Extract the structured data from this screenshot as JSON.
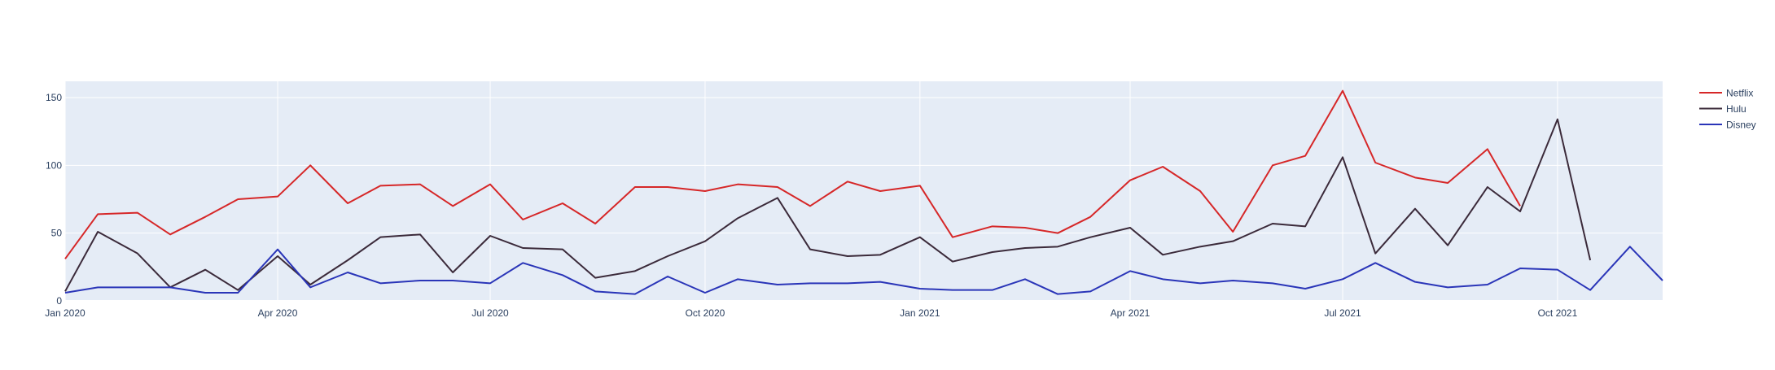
{
  "chart_data": {
    "type": "line",
    "title": "",
    "xlabel": "",
    "ylabel": "",
    "x": [
      "2020-01-01",
      "2020-01-15",
      "2020-02-01",
      "2020-02-15",
      "2020-03-01",
      "2020-03-15",
      "2020-04-01",
      "2020-04-15",
      "2020-05-01",
      "2020-05-15",
      "2020-06-01",
      "2020-06-15",
      "2020-07-01",
      "2020-07-15",
      "2020-08-01",
      "2020-08-15",
      "2020-09-01",
      "2020-09-15",
      "2020-10-01",
      "2020-10-15",
      "2020-11-01",
      "2020-11-15",
      "2020-12-01",
      "2020-12-15",
      "2021-01-01",
      "2021-01-15",
      "2021-02-01",
      "2021-02-15",
      "2021-03-01",
      "2021-03-15",
      "2021-04-01",
      "2021-04-15",
      "2021-05-01",
      "2021-05-15",
      "2021-06-01",
      "2021-06-15",
      "2021-07-01",
      "2021-07-15",
      "2021-08-01",
      "2021-08-15",
      "2021-09-01",
      "2021-09-15",
      "2021-10-01",
      "2021-10-15",
      "2021-11-01",
      "2021-11-15"
    ],
    "xlim": [
      "2020-01-01",
      "2021-11-15"
    ],
    "ylim": [
      0,
      162
    ],
    "x_ticks": [
      {
        "date": "2020-01-01",
        "label": "Jan 2020"
      },
      {
        "date": "2020-04-01",
        "label": "Apr 2020"
      },
      {
        "date": "2020-07-01",
        "label": "Jul 2020"
      },
      {
        "date": "2020-10-01",
        "label": "Oct 2020"
      },
      {
        "date": "2021-01-01",
        "label": "Jan 2021"
      },
      {
        "date": "2021-04-01",
        "label": "Apr 2021"
      },
      {
        "date": "2021-07-01",
        "label": "Jul 2021"
      },
      {
        "date": "2021-10-01",
        "label": "Oct 2021"
      }
    ],
    "y_ticks": [
      0,
      50,
      100,
      150
    ],
    "grid": true,
    "legend_position": "top-right",
    "series": [
      {
        "name": "Netflix",
        "color": "#d62728",
        "values": [
          31,
          64,
          65,
          49,
          62,
          75,
          77,
          100,
          72,
          85,
          86,
          70,
          86,
          60,
          72,
          57,
          84,
          84,
          81,
          86,
          84,
          70,
          88,
          81,
          85,
          47,
          55,
          54,
          50,
          62,
          89,
          99,
          81,
          51,
          100,
          107,
          155,
          102,
          91,
          87,
          112,
          70,
          null,
          null,
          null,
          null
        ]
      },
      {
        "name": "Hulu",
        "color": "#3b2a3a",
        "values": [
          7,
          51,
          35,
          10,
          23,
          8,
          33,
          12,
          30,
          47,
          49,
          21,
          48,
          39,
          38,
          17,
          22,
          33,
          44,
          61,
          76,
          38,
          33,
          34,
          47,
          29,
          36,
          39,
          40,
          47,
          54,
          34,
          40,
          44,
          57,
          55,
          106,
          35,
          68,
          41,
          84,
          66,
          134,
          30,
          null,
          null
        ]
      },
      {
        "name": "Disney",
        "color": "#2a35b8",
        "values": [
          6,
          10,
          10,
          10,
          6,
          6,
          38,
          10,
          21,
          13,
          15,
          15,
          13,
          28,
          19,
          7,
          5,
          18,
          6,
          16,
          12,
          13,
          13,
          14,
          9,
          8,
          8,
          16,
          5,
          7,
          22,
          16,
          13,
          15,
          13,
          9,
          16,
          28,
          14,
          10,
          12,
          24,
          23,
          8,
          40,
          15
        ]
      }
    ]
  }
}
